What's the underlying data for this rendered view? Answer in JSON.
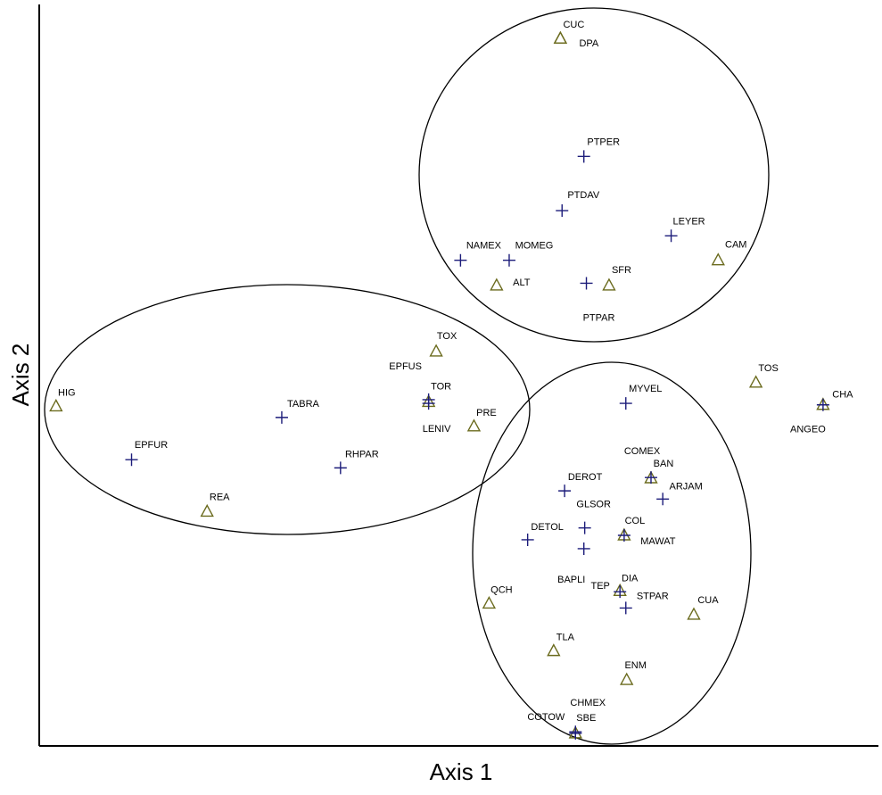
{
  "chart_data": {
    "type": "scatter",
    "xlabel": "Axis 1",
    "ylabel": "Axis 2",
    "xlim": [
      0,
      100
    ],
    "ylim": [
      0,
      100
    ],
    "grid": false,
    "series": [
      {
        "marker": "triangle",
        "color": "#6b6b1e",
        "labels": [
          "CUC",
          "DPA",
          "SFR",
          "ALT",
          "CAM",
          "TOX",
          "TOR",
          "HIG",
          "PRE",
          "REA",
          "TOS",
          "CHA",
          "BAN",
          "COL",
          "DIA",
          "QCH",
          "CUA",
          "TLA",
          "ENM",
          "SBE"
        ],
        "x": [
          62.1,
          62.1,
          67.9,
          54.5,
          80.9,
          47.3,
          46.4,
          2.0,
          51.8,
          20.0,
          85.4,
          93.4,
          72.9,
          69.7,
          69.2,
          53.6,
          78.0,
          61.3,
          70.0,
          63.9
        ],
        "values": [
          95.4,
          95.4,
          62.1,
          62.1,
          65.5,
          53.2,
          46.4,
          45.8,
          43.1,
          31.6,
          49.0,
          46.0,
          36.1,
          28.4,
          20.9,
          19.2,
          17.7,
          12.8,
          8.9,
          1.7
        ]
      },
      {
        "marker": "plus",
        "color": "#1c1c7a",
        "labels": [
          "PTPER",
          "PTDAV",
          "LEYER",
          "NAMEX",
          "MOMEG",
          "PTPAR",
          "EPFUS",
          "LENIV",
          "TABRA",
          "EPFUR",
          "RHPAR",
          "MYVEL",
          "COMEX",
          "ARJAM",
          "DEROT",
          "GLSOR",
          "DETOL",
          "MAWAT",
          "BAPLI",
          "TEP",
          "STPAR",
          "CHMEX",
          "COTOW",
          "ANGEO"
        ],
        "x": [
          64.9,
          62.3,
          75.3,
          50.2,
          56.0,
          65.2,
          46.4,
          46.4,
          28.9,
          11.0,
          35.9,
          69.9,
          72.9,
          74.3,
          62.6,
          65.0,
          58.2,
          69.7,
          64.9,
          69.2,
          69.9,
          63.9,
          63.9,
          93.4
        ],
        "values": [
          79.5,
          72.2,
          68.8,
          65.5,
          65.5,
          62.4,
          46.7,
          46.2,
          44.3,
          38.6,
          37.5,
          46.2,
          36.2,
          33.3,
          34.4,
          29.4,
          27.8,
          28.4,
          26.6,
          20.8,
          18.6,
          1.9,
          1.7,
          46.0
        ]
      }
    ]
  }
}
